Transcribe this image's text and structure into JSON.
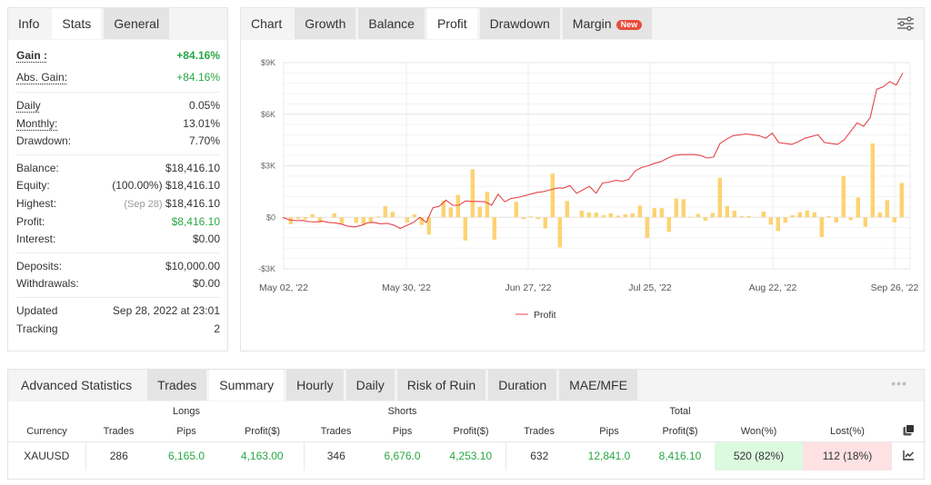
{
  "info_panel": {
    "tabs": [
      {
        "label": "Info",
        "state": "plain"
      },
      {
        "label": "Stats",
        "state": "active"
      },
      {
        "label": "General",
        "state": "inactive"
      }
    ],
    "groups": [
      [
        {
          "label": "Gain :",
          "value": "+84.16%",
          "value_color": "green",
          "label_style": "bold-underline"
        },
        {
          "label": "Abs. Gain:",
          "value": "+84.16%",
          "value_color": "green",
          "label_style": "underline"
        }
      ],
      [
        {
          "label": "Daily",
          "value": "0.05%",
          "label_style": "underline"
        },
        {
          "label": "Monthly:",
          "value": "13.01%",
          "label_style": "underline"
        },
        {
          "label": "Drawdown:",
          "value": "7.70%"
        }
      ],
      [
        {
          "label": "Balance:",
          "value": "$18,416.10"
        },
        {
          "label": "Equity:",
          "prefix": "(100.00%)",
          "value": "$18,416.10"
        },
        {
          "label": "Highest:",
          "prefix": "(Sep 28)",
          "prefix_muted": true,
          "value": "$18,416.10"
        },
        {
          "label": "Profit:",
          "value": "$8,416.10",
          "value_color": "green"
        },
        {
          "label": "Interest:",
          "value": "$0.00"
        }
      ],
      [
        {
          "label": "Deposits:",
          "value": "$10,000.00"
        },
        {
          "label": "Withdrawals:",
          "value": "$0.00"
        }
      ],
      [
        {
          "label": "Updated",
          "value": "Sep 28, 2022 at 23:01"
        },
        {
          "label": "Tracking",
          "value": "2"
        }
      ]
    ]
  },
  "chart_panel": {
    "tabs": [
      {
        "label": "Chart",
        "state": "plain"
      },
      {
        "label": "Growth",
        "state": "inactive"
      },
      {
        "label": "Balance",
        "state": "inactive"
      },
      {
        "label": "Profit",
        "state": "active"
      },
      {
        "label": "Drawdown",
        "state": "inactive"
      },
      {
        "label": "Margin",
        "state": "inactive",
        "badge": "New"
      }
    ],
    "settings_icon": "sliders-icon",
    "legend_label": "Profit"
  },
  "chart_data": {
    "type": "bar",
    "title": "Profit",
    "xlabel": "",
    "ylabel": "",
    "ylim": [
      -3000,
      9000
    ],
    "y_ticks": [
      "$9K",
      "$6K",
      "$3K",
      "$0",
      "-$3K"
    ],
    "y_tick_values": [
      9000,
      6000,
      3000,
      0,
      -3000
    ],
    "x_ticks": [
      "May 02, '22",
      "May 30, '22",
      "Jun 27, '22",
      "Jul 25, '22",
      "Aug 22, '22",
      "Sep 26, '22"
    ],
    "grid": true,
    "legend": {
      "position": "bottom",
      "entries": [
        "Profit"
      ]
    },
    "colors": {
      "bars": "#fcd372",
      "line": "#e4444b"
    },
    "series": [
      {
        "name": "Daily profit (bars)",
        "type": "bar",
        "values": [
          -400,
          -100,
          -120,
          170,
          -320,
          0,
          230,
          -380,
          0,
          -330,
          -480,
          -280,
          50,
          650,
          320,
          0,
          -300,
          170,
          -450,
          -1000,
          0,
          950,
          580,
          1300,
          -1350,
          2800,
          600,
          1480,
          -1300,
          0,
          0,
          900,
          -100,
          50,
          -100,
          -650,
          2550,
          -1750,
          950,
          0,
          380,
          280,
          270,
          120,
          240,
          100,
          170,
          220,
          680,
          -1200,
          530,
          530,
          -850,
          1100,
          1050,
          40,
          200,
          -200,
          250,
          2300,
          660,
          380,
          60,
          70,
          0,
          330,
          -430,
          -800,
          -320,
          120,
          300,
          400,
          290,
          -1150,
          70,
          -300,
          2400,
          -160,
          1150,
          -550,
          4300,
          280,
          1000,
          -300,
          2000
        ]
      },
      {
        "name": "Profit",
        "type": "line",
        "values": [
          0,
          -150,
          -200,
          -180,
          -250,
          -280,
          -220,
          -300,
          -320,
          -400,
          -520,
          -560,
          -480,
          -320,
          -300,
          -380,
          -350,
          -450,
          -650,
          -480,
          -300,
          0,
          -300,
          550,
          650,
          1000,
          700,
          700,
          950,
          920,
          920,
          900,
          700,
          1350,
          900,
          1100,
          1150,
          1250,
          1350,
          1450,
          1500,
          1600,
          1700,
          1700,
          1850,
          1400,
          1600,
          1800,
          1400,
          2000,
          2050,
          2150,
          2100,
          2200,
          2700,
          2900,
          3000,
          3150,
          3250,
          3450,
          3600,
          3650,
          3650,
          3650,
          3600,
          3450,
          3500,
          4300,
          4550,
          4750,
          4800,
          4850,
          4800,
          4750,
          4600,
          4900,
          4350,
          4300,
          4250,
          4400,
          4600,
          4700,
          4800,
          4350,
          4300,
          4250,
          4500,
          5000,
          5500,
          5300,
          5800,
          7450,
          7600,
          7900,
          7700,
          8400
        ]
      }
    ]
  },
  "advanced_stats": {
    "title": "Advanced Statistics",
    "tabs": [
      {
        "label": "Trades",
        "state": "inactive"
      },
      {
        "label": "Summary",
        "state": "active"
      },
      {
        "label": "Hourly",
        "state": "inactive"
      },
      {
        "label": "Daily",
        "state": "inactive"
      },
      {
        "label": "Risk of Ruin",
        "state": "inactive"
      },
      {
        "label": "Duration",
        "state": "inactive"
      },
      {
        "label": "MAE/MFE",
        "state": "inactive"
      }
    ],
    "more_icon": "ellipsis-icon",
    "group_headers": {
      "longs": "Longs",
      "shorts": "Shorts",
      "total": "Total"
    },
    "columns": [
      "Currency",
      "Trades",
      "Pips",
      "Profit($)",
      "Trades",
      "Pips",
      "Profit($)",
      "Trades",
      "Pips",
      "Profit($)",
      "Won(%)",
      "Lost(%)"
    ],
    "copy_icon": "copy-icon",
    "rows": [
      {
        "currency": "XAUUSD",
        "long_trades": "286",
        "long_pips": "6,165.0",
        "long_profit": "4,163.00",
        "short_trades": "346",
        "short_pips": "6,676.0",
        "short_profit": "4,253.10",
        "total_trades": "632",
        "total_pips": "12,841.0",
        "total_profit": "8,416.10",
        "won": "520 (82%)",
        "lost": "112 (18%)",
        "chart_icon": "line-chart-icon"
      }
    ]
  }
}
